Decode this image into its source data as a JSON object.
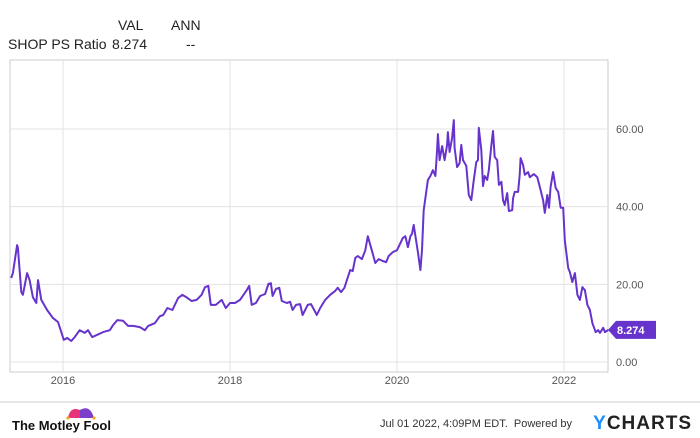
{
  "header": {
    "col_val": "VAL",
    "col_ann": "ANN",
    "series_name": "SHOP PS Ratio",
    "val": "8.274",
    "ann": "--"
  },
  "footer": {
    "brand": "The Motley Fool",
    "timestamp": "Jul 01 2022, 4:09PM EDT.",
    "powered_by": "Powered by",
    "ycharts_y": "Y",
    "ycharts_rest": "CHARTS"
  },
  "colors": {
    "line": "#6633cc",
    "grid": "#e3e3e3"
  },
  "chart_data": {
    "type": "line",
    "title": "SHOP PS Ratio",
    "xlabel": "",
    "ylabel": "",
    "xlim": [
      2015.38,
      2022.53
    ],
    "ylim": [
      0,
      65
    ],
    "x_ticks": [
      "2016",
      "2018",
      "2020",
      "2022"
    ],
    "y_ticks": [
      "0.00",
      "20.00",
      "40.00",
      "60.00"
    ],
    "last_value_label": "8.274",
    "grid": true,
    "series": [
      {
        "name": "SHOP PS Ratio",
        "points": [
          [
            2015.38,
            21.6
          ],
          [
            2015.4,
            22.9
          ],
          [
            2015.45,
            30.1
          ],
          [
            2015.46,
            29.4
          ],
          [
            2015.5,
            18.0
          ],
          [
            2015.52,
            17.3
          ],
          [
            2015.57,
            22.9
          ],
          [
            2015.6,
            21.1
          ],
          [
            2015.64,
            16.7
          ],
          [
            2015.68,
            15.2
          ],
          [
            2015.7,
            21.1
          ],
          [
            2015.74,
            16.0
          ],
          [
            2015.81,
            13.4
          ],
          [
            2015.88,
            11.3
          ],
          [
            2015.94,
            10.3
          ],
          [
            2015.99,
            7.0
          ],
          [
            2016.01,
            5.7
          ],
          [
            2016.05,
            6.2
          ],
          [
            2016.1,
            5.4
          ],
          [
            2016.14,
            6.4
          ],
          [
            2016.2,
            8.2
          ],
          [
            2016.26,
            7.5
          ],
          [
            2016.3,
            8.2
          ],
          [
            2016.35,
            6.4
          ],
          [
            2016.41,
            7.0
          ],
          [
            2016.48,
            7.7
          ],
          [
            2016.56,
            8.2
          ],
          [
            2016.6,
            9.5
          ],
          [
            2016.65,
            10.8
          ],
          [
            2016.72,
            10.6
          ],
          [
            2016.78,
            9.3
          ],
          [
            2016.84,
            9.3
          ],
          [
            2016.92,
            9.0
          ],
          [
            2016.98,
            8.2
          ],
          [
            2017.02,
            9.3
          ],
          [
            2017.1,
            10.0
          ],
          [
            2017.16,
            11.8
          ],
          [
            2017.2,
            12.1
          ],
          [
            2017.25,
            13.9
          ],
          [
            2017.31,
            13.4
          ],
          [
            2017.38,
            16.5
          ],
          [
            2017.43,
            17.3
          ],
          [
            2017.49,
            16.5
          ],
          [
            2017.54,
            15.7
          ],
          [
            2017.6,
            16.0
          ],
          [
            2017.66,
            17.3
          ],
          [
            2017.7,
            19.3
          ],
          [
            2017.74,
            19.6
          ],
          [
            2017.77,
            14.7
          ],
          [
            2017.83,
            14.7
          ],
          [
            2017.9,
            16.0
          ],
          [
            2017.95,
            13.9
          ],
          [
            2018.0,
            15.2
          ],
          [
            2018.06,
            15.2
          ],
          [
            2018.12,
            16.0
          ],
          [
            2018.2,
            18.5
          ],
          [
            2018.23,
            19.6
          ],
          [
            2018.26,
            14.7
          ],
          [
            2018.31,
            15.2
          ],
          [
            2018.36,
            17.0
          ],
          [
            2018.42,
            17.5
          ],
          [
            2018.46,
            20.1
          ],
          [
            2018.49,
            20.3
          ],
          [
            2018.51,
            17.0
          ],
          [
            2018.55,
            18.8
          ],
          [
            2018.59,
            19.1
          ],
          [
            2018.62,
            15.7
          ],
          [
            2018.68,
            15.2
          ],
          [
            2018.72,
            15.5
          ],
          [
            2018.75,
            13.4
          ],
          [
            2018.79,
            14.7
          ],
          [
            2018.84,
            14.9
          ],
          [
            2018.87,
            12.1
          ],
          [
            2018.93,
            14.7
          ],
          [
            2018.97,
            14.9
          ],
          [
            2019.02,
            12.9
          ],
          [
            2019.04,
            12.1
          ],
          [
            2019.08,
            13.9
          ],
          [
            2019.14,
            16.0
          ],
          [
            2019.2,
            17.3
          ],
          [
            2019.26,
            18.3
          ],
          [
            2019.29,
            19.1
          ],
          [
            2019.33,
            18.0
          ],
          [
            2019.37,
            19.1
          ],
          [
            2019.4,
            21.1
          ],
          [
            2019.44,
            23.7
          ],
          [
            2019.47,
            23.4
          ],
          [
            2019.5,
            26.8
          ],
          [
            2019.53,
            27.3
          ],
          [
            2019.58,
            26.5
          ],
          [
            2019.62,
            28.8
          ],
          [
            2019.65,
            32.4
          ],
          [
            2019.69,
            29.4
          ],
          [
            2019.74,
            25.5
          ],
          [
            2019.78,
            26.5
          ],
          [
            2019.83,
            26.0
          ],
          [
            2019.87,
            25.7
          ],
          [
            2019.9,
            27.3
          ],
          [
            2019.95,
            28.3
          ],
          [
            2020.0,
            28.8
          ],
          [
            2020.07,
            31.9
          ],
          [
            2020.1,
            32.4
          ],
          [
            2020.13,
            29.6
          ],
          [
            2020.16,
            32.4
          ],
          [
            2020.18,
            33.0
          ],
          [
            2020.2,
            35.3
          ],
          [
            2020.25,
            28.3
          ],
          [
            2020.28,
            23.7
          ],
          [
            2020.3,
            28.8
          ],
          [
            2020.32,
            39.1
          ],
          [
            2020.37,
            46.9
          ],
          [
            2020.4,
            47.9
          ],
          [
            2020.43,
            49.4
          ],
          [
            2020.46,
            47.9
          ],
          [
            2020.48,
            54.6
          ],
          [
            2020.49,
            58.7
          ],
          [
            2020.51,
            52.0
          ],
          [
            2020.54,
            55.6
          ],
          [
            2020.57,
            52.0
          ],
          [
            2020.6,
            55.9
          ],
          [
            2020.61,
            59.2
          ],
          [
            2020.63,
            54.1
          ],
          [
            2020.66,
            57.7
          ],
          [
            2020.68,
            62.3
          ],
          [
            2020.69,
            55.1
          ],
          [
            2020.72,
            50.2
          ],
          [
            2020.75,
            51.2
          ],
          [
            2020.77,
            55.9
          ],
          [
            2020.79,
            52.0
          ],
          [
            2020.83,
            50.5
          ],
          [
            2020.86,
            43.0
          ],
          [
            2020.89,
            41.7
          ],
          [
            2020.92,
            46.9
          ],
          [
            2020.95,
            51.5
          ],
          [
            2020.97,
            52.0
          ],
          [
            2020.98,
            60.3
          ],
          [
            2021.01,
            54.6
          ],
          [
            2021.03,
            45.3
          ],
          [
            2021.05,
            47.9
          ],
          [
            2021.08,
            46.9
          ],
          [
            2021.1,
            49.4
          ],
          [
            2021.13,
            55.9
          ],
          [
            2021.15,
            59.5
          ],
          [
            2021.17,
            52.8
          ],
          [
            2021.2,
            52.0
          ],
          [
            2021.22,
            45.6
          ],
          [
            2021.25,
            46.4
          ],
          [
            2021.27,
            41.7
          ],
          [
            2021.29,
            40.4
          ],
          [
            2021.32,
            43.5
          ],
          [
            2021.34,
            38.9
          ],
          [
            2021.38,
            39.1
          ],
          [
            2021.39,
            42.2
          ],
          [
            2021.41,
            43.8
          ],
          [
            2021.45,
            43.8
          ],
          [
            2021.47,
            48.2
          ],
          [
            2021.48,
            52.5
          ],
          [
            2021.51,
            50.7
          ],
          [
            2021.53,
            48.2
          ],
          [
            2021.57,
            48.9
          ],
          [
            2021.59,
            47.6
          ],
          [
            2021.64,
            48.4
          ],
          [
            2021.68,
            47.6
          ],
          [
            2021.71,
            45.1
          ],
          [
            2021.75,
            41.7
          ],
          [
            2021.77,
            38.4
          ],
          [
            2021.8,
            43.0
          ],
          [
            2021.82,
            39.7
          ],
          [
            2021.84,
            45.1
          ],
          [
            2021.87,
            48.9
          ],
          [
            2021.9,
            44.8
          ],
          [
            2021.93,
            43.8
          ],
          [
            2021.96,
            39.7
          ],
          [
            2021.99,
            39.7
          ],
          [
            2022.01,
            31.4
          ],
          [
            2022.05,
            24.2
          ],
          [
            2022.07,
            23.2
          ],
          [
            2022.1,
            20.6
          ],
          [
            2022.13,
            22.9
          ],
          [
            2022.16,
            17.3
          ],
          [
            2022.19,
            16.0
          ],
          [
            2022.22,
            19.3
          ],
          [
            2022.25,
            18.5
          ],
          [
            2022.28,
            14.7
          ],
          [
            2022.31,
            13.4
          ],
          [
            2022.34,
            10.0
          ],
          [
            2022.38,
            7.7
          ],
          [
            2022.41,
            8.2
          ],
          [
            2022.43,
            7.5
          ],
          [
            2022.47,
            8.8
          ],
          [
            2022.49,
            7.7
          ],
          [
            2022.53,
            8.274
          ]
        ]
      }
    ]
  }
}
